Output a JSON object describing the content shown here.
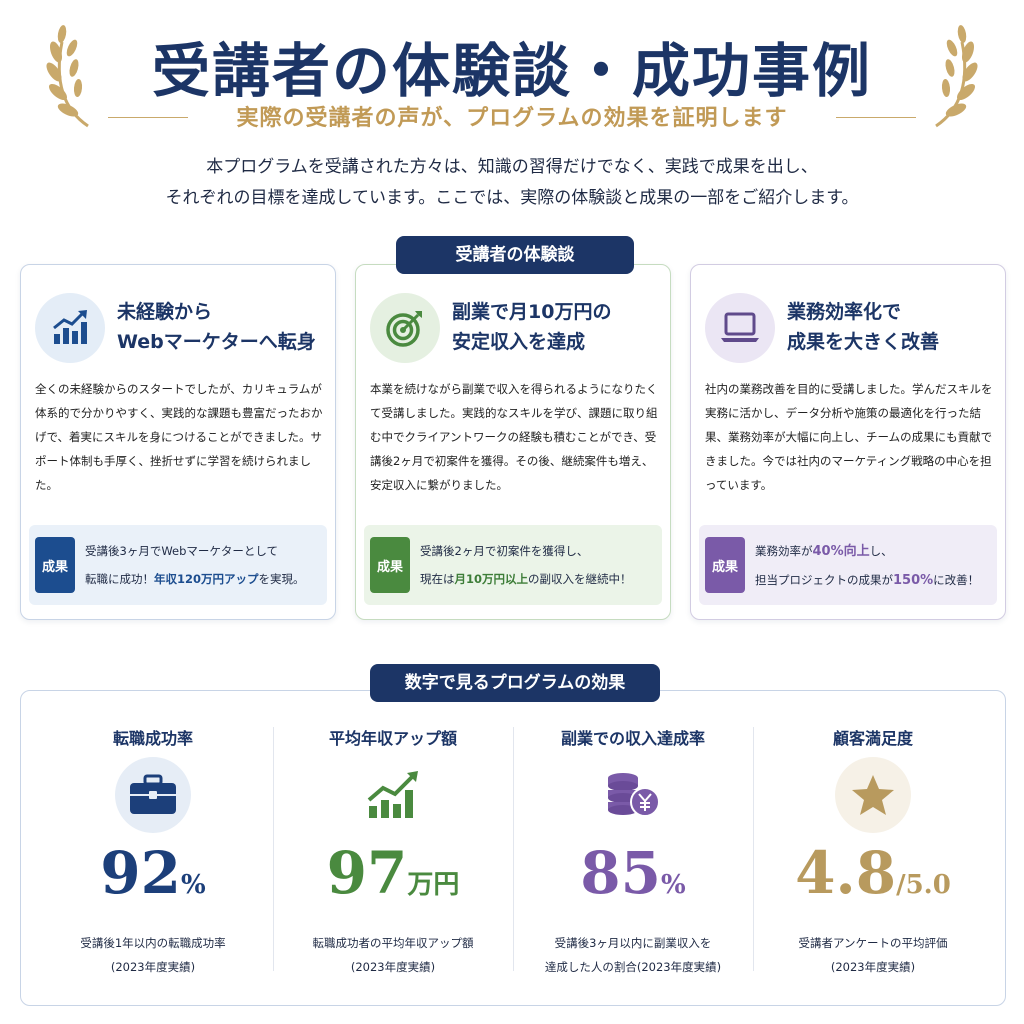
{
  "header": {
    "title": "受講者の体験談・成功事例",
    "subtitle": "実際の受講者の声が、プログラムの効果を証明します"
  },
  "intro": {
    "line1": "本プログラムを受講された方々は、知識の習得だけでなく、実践で成果を出し、",
    "line2": "それぞれの目標を達成しています。ここでは、実際の体験談と成果の一部をご紹介します。"
  },
  "testimonials": {
    "section_label": "受講者の体験談",
    "cards": [
      {
        "icon": "chart-up-icon",
        "title_line1": "未経験から",
        "title_line2": "Webマーケターへ転身",
        "body": "全くの未経験からのスタートでしたが、カリキュラムが体系的で分かりやすく、実践的な課題も豊富だったおかげで、着実にスキルを身につけることができました。サポート体制も手厚く、挫折せずに学習を続けられました。",
        "badge": "成果",
        "result_line1": "受講後3ヶ月でWebマーケターとして",
        "result_line2_pre": "転職に成功！",
        "result_line2_hl": "年収120万円アップ",
        "result_line2_post": "を実現。"
      },
      {
        "icon": "target-icon",
        "title_line1": "副業で月10万円の",
        "title_line2": "安定収入を達成",
        "body": "本業を続けながら副業で収入を得られるようになりたくて受講しました。実践的なスキルを学び、課題に取り組む中でクライアントワークの経験も積むことができ、受講後2ヶ月で初案件を獲得。その後、継続案件も増え、安定収入に繋がりました。",
        "badge": "成果",
        "result_line1": "受講後2ヶ月で初案件を獲得し、",
        "result_line2_pre": "現在は",
        "result_line2_hl": "月10万円以上",
        "result_line2_post": "の副収入を継続中！"
      },
      {
        "icon": "laptop-icon",
        "title_line1": "業務効率化で",
        "title_line2": "成果を大きく改善",
        "body": "社内の業務改善を目的に受講しました。学んだスキルを実務に活かし、データ分析や施策の最適化を行った結果、業務効率が大幅に向上し、チームの成果にも貢献できました。今では社内のマーケティング戦略の中心を担っています。",
        "badge": "成果",
        "result_line1_pre": "業務効率が",
        "result_line1_hl": "40%向上",
        "result_line1_post": "し、",
        "result_line2_pre": "担当プロジェクトの成果が",
        "result_line2_hl": "150%",
        "result_line2_post": "に改善！"
      }
    ]
  },
  "stats": {
    "section_label": "数字で見るプログラムの効果",
    "items": [
      {
        "title": "転職成功率",
        "icon": "briefcase-icon",
        "value": "92",
        "unit": "%",
        "desc_line1": "受講後1年以内の転職成功率",
        "desc_line2": "(2023年度実績)",
        "color": "#1c3f7a"
      },
      {
        "title": "平均年収アップ額",
        "icon": "growth-chart-icon",
        "value": "97",
        "unit": "万円",
        "desc_line1": "転職成功者の平均年収アップ額",
        "desc_line2": "(2023年度実績)",
        "color": "#4a8a3f"
      },
      {
        "title": "副業での収入達成率",
        "icon": "coins-yen-icon",
        "value": "85",
        "unit": "%",
        "desc_line1": "受講後3ヶ月以内に副業収入を",
        "desc_line2": "達成した人の割合(2023年度実績)",
        "color": "#7a5aa8"
      },
      {
        "title": "顧客満足度",
        "icon": "star-icon",
        "value": "4.8",
        "unit": "/5.0",
        "desc_line1": "受講者アンケートの平均評価",
        "desc_line2": "(2023年度実績)",
        "color": "#b89a5e"
      }
    ]
  },
  "colors": {
    "navy": "#1c3566",
    "gold": "#c19a56",
    "green": "#4a8a3f",
    "purple": "#7a5aa8"
  }
}
